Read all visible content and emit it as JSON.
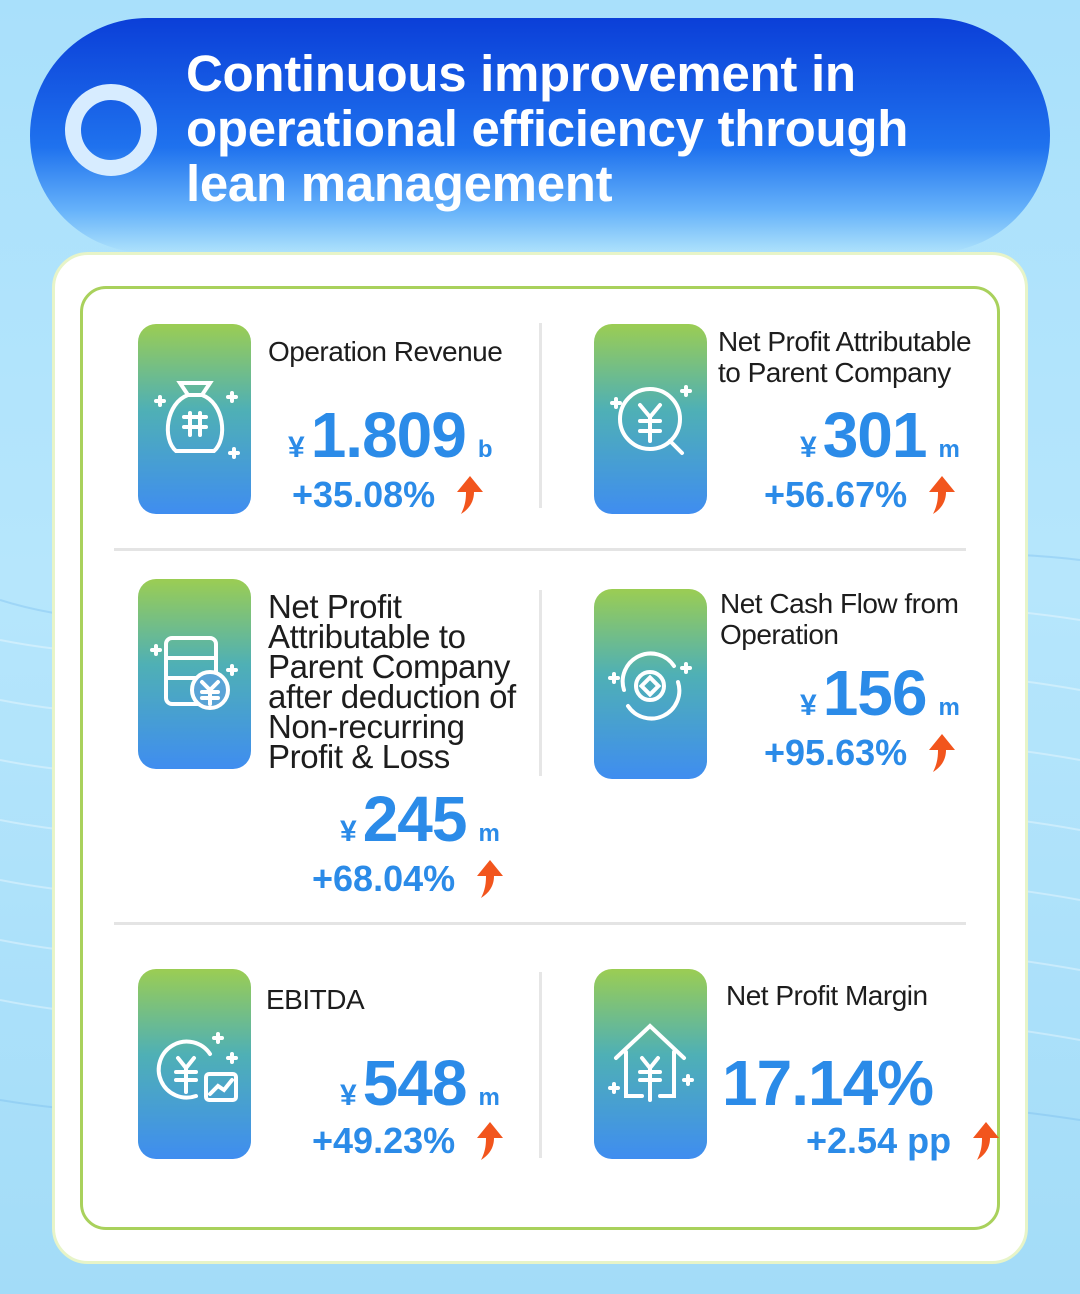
{
  "header": {
    "title": "Continuous improvement in operational efficiency through lean management"
  },
  "metrics": [
    {
      "label": "Operation Revenue",
      "currency": "¥",
      "value": "1.809",
      "unit": "b",
      "change": "+35.08%",
      "icon": "money-bag-icon"
    },
    {
      "label": "Net Profit Attributable to Parent Company",
      "currency": "¥",
      "value": "301",
      "unit": "m",
      "change": "+56.67%",
      "icon": "yuan-coin-search-icon"
    },
    {
      "label": "Net Profit Attributable to Parent Company after deduction of Non-recurring Profit & Loss",
      "currency": "¥",
      "value": "245",
      "unit": "m",
      "change": "+68.04%",
      "icon": "ledger-yuan-icon"
    },
    {
      "label": "Net Cash Flow from Operation",
      "currency": "¥",
      "value": "156",
      "unit": "m",
      "change": "+95.63%",
      "icon": "cash-flow-cycle-icon"
    },
    {
      "label": "EBITDA",
      "currency": "¥",
      "value": "548",
      "unit": "m",
      "change": "+49.23%",
      "icon": "yuan-chart-icon"
    },
    {
      "label": "Net Profit Margin",
      "currency": "",
      "value": "17.14%",
      "unit": "",
      "change": "+2.54 pp",
      "icon": "house-yuan-icon"
    }
  ],
  "colors": {
    "accent": "#2b8be8",
    "arrow": "#f2551d",
    "border": "#a9d15c",
    "banner": "#1f72ee"
  }
}
